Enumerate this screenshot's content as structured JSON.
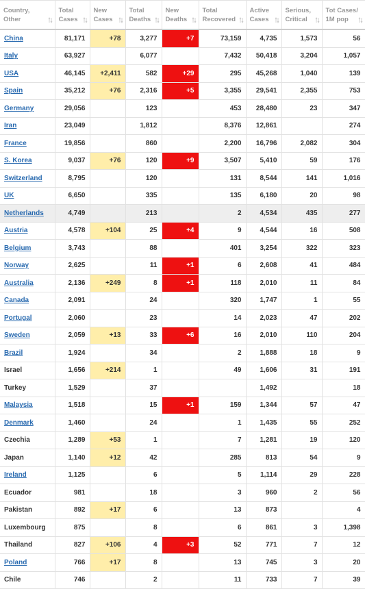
{
  "header": {
    "columns": [
      [
        "Country,",
        "Other"
      ],
      [
        "Total",
        "Cases"
      ],
      [
        "New",
        "Cases"
      ],
      [
        "Total",
        "Deaths"
      ],
      [
        "New",
        "Deaths"
      ],
      [
        "Total",
        "Recovered"
      ],
      [
        "Active",
        "Cases"
      ],
      [
        "Serious,",
        "Critical"
      ],
      [
        "Tot Cases/",
        "1M pop"
      ]
    ]
  },
  "rows": [
    {
      "country": "China",
      "link": true,
      "cells": [
        "81,171",
        "+78",
        "3,277",
        "+7",
        "73,159",
        "4,735",
        "1,573",
        "56"
      ]
    },
    {
      "country": "Italy",
      "link": true,
      "cells": [
        "63,927",
        null,
        "6,077",
        null,
        "7,432",
        "50,418",
        "3,204",
        "1,057"
      ]
    },
    {
      "country": "USA",
      "link": true,
      "cells": [
        "46,145",
        "+2,411",
        "582",
        "+29",
        "295",
        "45,268",
        "1,040",
        "139"
      ]
    },
    {
      "country": "Spain",
      "link": true,
      "cells": [
        "35,212",
        "+76",
        "2,316",
        "+5",
        "3,355",
        "29,541",
        "2,355",
        "753"
      ]
    },
    {
      "country": "Germany",
      "link": true,
      "cells": [
        "29,056",
        null,
        "123",
        null,
        "453",
        "28,480",
        "23",
        "347"
      ]
    },
    {
      "country": "Iran",
      "link": true,
      "cells": [
        "23,049",
        null,
        "1,812",
        null,
        "8,376",
        "12,861",
        null,
        "274"
      ]
    },
    {
      "country": "France",
      "link": true,
      "cells": [
        "19,856",
        null,
        "860",
        null,
        "2,200",
        "16,796",
        "2,082",
        "304"
      ]
    },
    {
      "country": "S. Korea",
      "link": true,
      "cells": [
        "9,037",
        "+76",
        "120",
        "+9",
        "3,507",
        "5,410",
        "59",
        "176"
      ]
    },
    {
      "country": "Switzerland",
      "link": true,
      "cells": [
        "8,795",
        null,
        "120",
        null,
        "131",
        "8,544",
        "141",
        "1,016"
      ]
    },
    {
      "country": "UK",
      "link": true,
      "cells": [
        "6,650",
        null,
        "335",
        null,
        "135",
        "6,180",
        "20",
        "98"
      ]
    },
    {
      "country": "Netherlands",
      "link": true,
      "highlight": true,
      "cells": [
        "4,749",
        null,
        "213",
        null,
        "2",
        "4,534",
        "435",
        "277"
      ]
    },
    {
      "country": "Austria",
      "link": true,
      "cells": [
        "4,578",
        "+104",
        "25",
        "+4",
        "9",
        "4,544",
        "16",
        "508"
      ]
    },
    {
      "country": "Belgium",
      "link": true,
      "cells": [
        "3,743",
        null,
        "88",
        null,
        "401",
        "3,254",
        "322",
        "323"
      ]
    },
    {
      "country": "Norway",
      "link": true,
      "cells": [
        "2,625",
        null,
        "11",
        "+1",
        "6",
        "2,608",
        "41",
        "484"
      ]
    },
    {
      "country": "Australia",
      "link": true,
      "cells": [
        "2,136",
        "+249",
        "8",
        "+1",
        "118",
        "2,010",
        "11",
        "84"
      ]
    },
    {
      "country": "Canada",
      "link": true,
      "cells": [
        "2,091",
        null,
        "24",
        null,
        "320",
        "1,747",
        "1",
        "55"
      ]
    },
    {
      "country": "Portugal",
      "link": true,
      "cells": [
        "2,060",
        null,
        "23",
        null,
        "14",
        "2,023",
        "47",
        "202"
      ]
    },
    {
      "country": "Sweden",
      "link": true,
      "cells": [
        "2,059",
        "+13",
        "33",
        "+6",
        "16",
        "2,010",
        "110",
        "204"
      ]
    },
    {
      "country": "Brazil",
      "link": true,
      "cells": [
        "1,924",
        null,
        "34",
        null,
        "2",
        "1,888",
        "18",
        "9"
      ]
    },
    {
      "country": "Israel",
      "link": false,
      "cells": [
        "1,656",
        "+214",
        "1",
        null,
        "49",
        "1,606",
        "31",
        "191"
      ]
    },
    {
      "country": "Turkey",
      "link": false,
      "cells": [
        "1,529",
        null,
        "37",
        null,
        null,
        "1,492",
        null,
        "18"
      ]
    },
    {
      "country": "Malaysia",
      "link": true,
      "cells": [
        "1,518",
        null,
        "15",
        "+1",
        "159",
        "1,344",
        "57",
        "47"
      ]
    },
    {
      "country": "Denmark",
      "link": true,
      "cells": [
        "1,460",
        null,
        "24",
        null,
        "1",
        "1,435",
        "55",
        "252"
      ]
    },
    {
      "country": "Czechia",
      "link": false,
      "cells": [
        "1,289",
        "+53",
        "1",
        null,
        "7",
        "1,281",
        "19",
        "120"
      ]
    },
    {
      "country": "Japan",
      "link": false,
      "cells": [
        "1,140",
        "+12",
        "42",
        null,
        "285",
        "813",
        "54",
        "9"
      ]
    },
    {
      "country": "Ireland",
      "link": true,
      "cells": [
        "1,125",
        null,
        "6",
        null,
        "5",
        "1,114",
        "29",
        "228"
      ]
    },
    {
      "country": "Ecuador",
      "link": false,
      "cells": [
        "981",
        null,
        "18",
        null,
        "3",
        "960",
        "2",
        "56"
      ]
    },
    {
      "country": "Pakistan",
      "link": false,
      "cells": [
        "892",
        "+17",
        "6",
        null,
        "13",
        "873",
        null,
        "4"
      ]
    },
    {
      "country": "Luxembourg",
      "link": false,
      "cells": [
        "875",
        null,
        "8",
        null,
        "6",
        "861",
        "3",
        "1,398"
      ]
    },
    {
      "country": "Thailand",
      "link": false,
      "cells": [
        "827",
        "+106",
        "4",
        "+3",
        "52",
        "771",
        "7",
        "12"
      ]
    },
    {
      "country": "Poland",
      "link": true,
      "cells": [
        "766",
        "+17",
        "8",
        null,
        "13",
        "745",
        "3",
        "20"
      ]
    },
    {
      "country": "Chile",
      "link": false,
      "cells": [
        "746",
        null,
        "2",
        null,
        "11",
        "733",
        "7",
        "39"
      ]
    }
  ]
}
